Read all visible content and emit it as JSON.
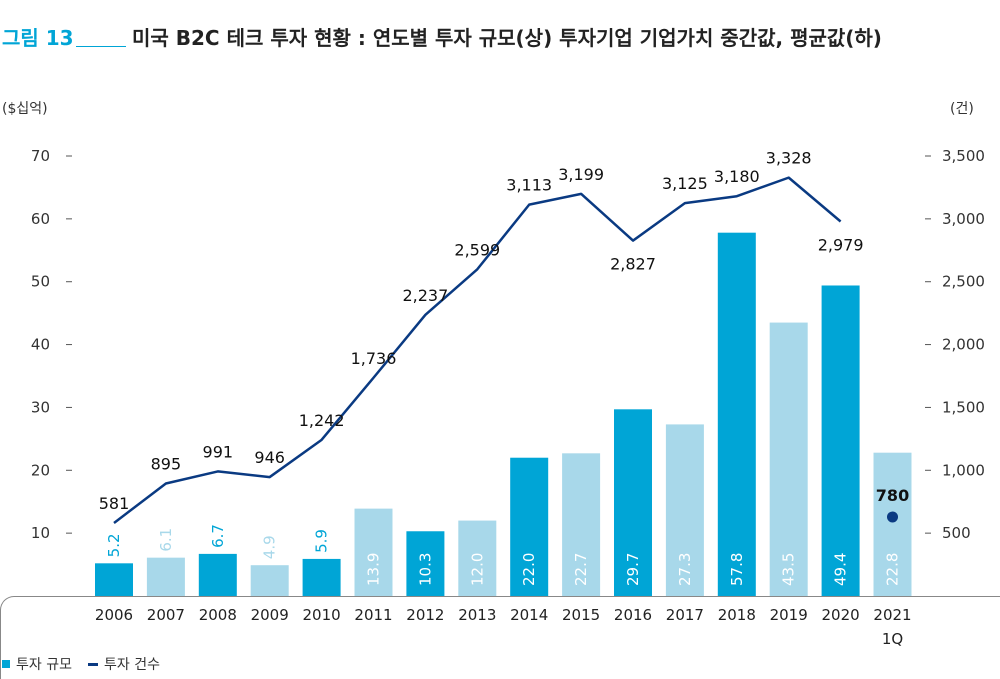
{
  "header": {
    "fig_label": "그림 13",
    "title": "미국 B2C 테크 투자 현황 : 연도별 투자 규모(상) 투자기업 기업가치 중간값, 평균값(하)"
  },
  "chart_data": {
    "type": "bar",
    "categories": [
      "2006",
      "2007",
      "2008",
      "2009",
      "2010",
      "2011",
      "2012",
      "2013",
      "2014",
      "2015",
      "2016",
      "2017",
      "2018",
      "2019",
      "2020",
      "2021\n1Q"
    ],
    "left_unit": "($십억)",
    "right_unit": "(건)",
    "left_axis": {
      "ylim": [
        0,
        70
      ],
      "ticks": [
        10,
        20,
        30,
        40,
        50,
        60,
        70
      ]
    },
    "right_axis": {
      "ylim": [
        0,
        3500
      ],
      "ticks": [
        "500",
        "1,000",
        "1,500",
        "2,000",
        "2,500",
        "3,000",
        "3,500"
      ],
      "tick_values": [
        500,
        1000,
        1500,
        2000,
        2500,
        3000,
        3500
      ]
    },
    "series": [
      {
        "name": "투자 규모",
        "kind": "bar",
        "values": [
          5.2,
          6.1,
          6.7,
          4.9,
          5.9,
          13.9,
          10.3,
          12.0,
          22.0,
          22.7,
          29.7,
          27.3,
          57.8,
          43.5,
          49.4,
          22.8
        ],
        "labels": [
          "5.2",
          "6.1",
          "6.7",
          "4.9",
          "5.9",
          "13.9",
          "10.3",
          "12.0",
          "22.0",
          "22.7",
          "29.7",
          "27.3",
          "57.8",
          "43.5",
          "49.4",
          "22.8"
        ],
        "shade": [
          "dark",
          "light",
          "dark",
          "light",
          "dark",
          "light",
          "dark",
          "light",
          "dark",
          "light",
          "dark",
          "light",
          "dark",
          "light",
          "dark",
          "light"
        ]
      },
      {
        "name": "투자 건수",
        "kind": "line",
        "values": [
          581,
          895,
          991,
          946,
          1242,
          1736,
          2237,
          2599,
          3113,
          3199,
          2827,
          3125,
          3180,
          3328,
          2979,
          null
        ],
        "labels": [
          "581",
          "895",
          "991",
          "946",
          "1,242",
          "1,736",
          "2,237",
          "2,599",
          "3,113",
          "3,199",
          "2,827",
          "3,125",
          "3,180",
          "3,328",
          "2,979",
          ""
        ],
        "extra_point": {
          "index": 15,
          "value": 780,
          "label": "780"
        }
      }
    ],
    "colors": {
      "bar_dark": "#00a5d6",
      "bar_light": "#a8d8ea",
      "line": "#0a3a82",
      "point": "#0a3a82",
      "label_light_text": "#a8d8ea"
    }
  },
  "legend": {
    "bar_label": "투자 규모",
    "line_label": "투자 건수"
  }
}
